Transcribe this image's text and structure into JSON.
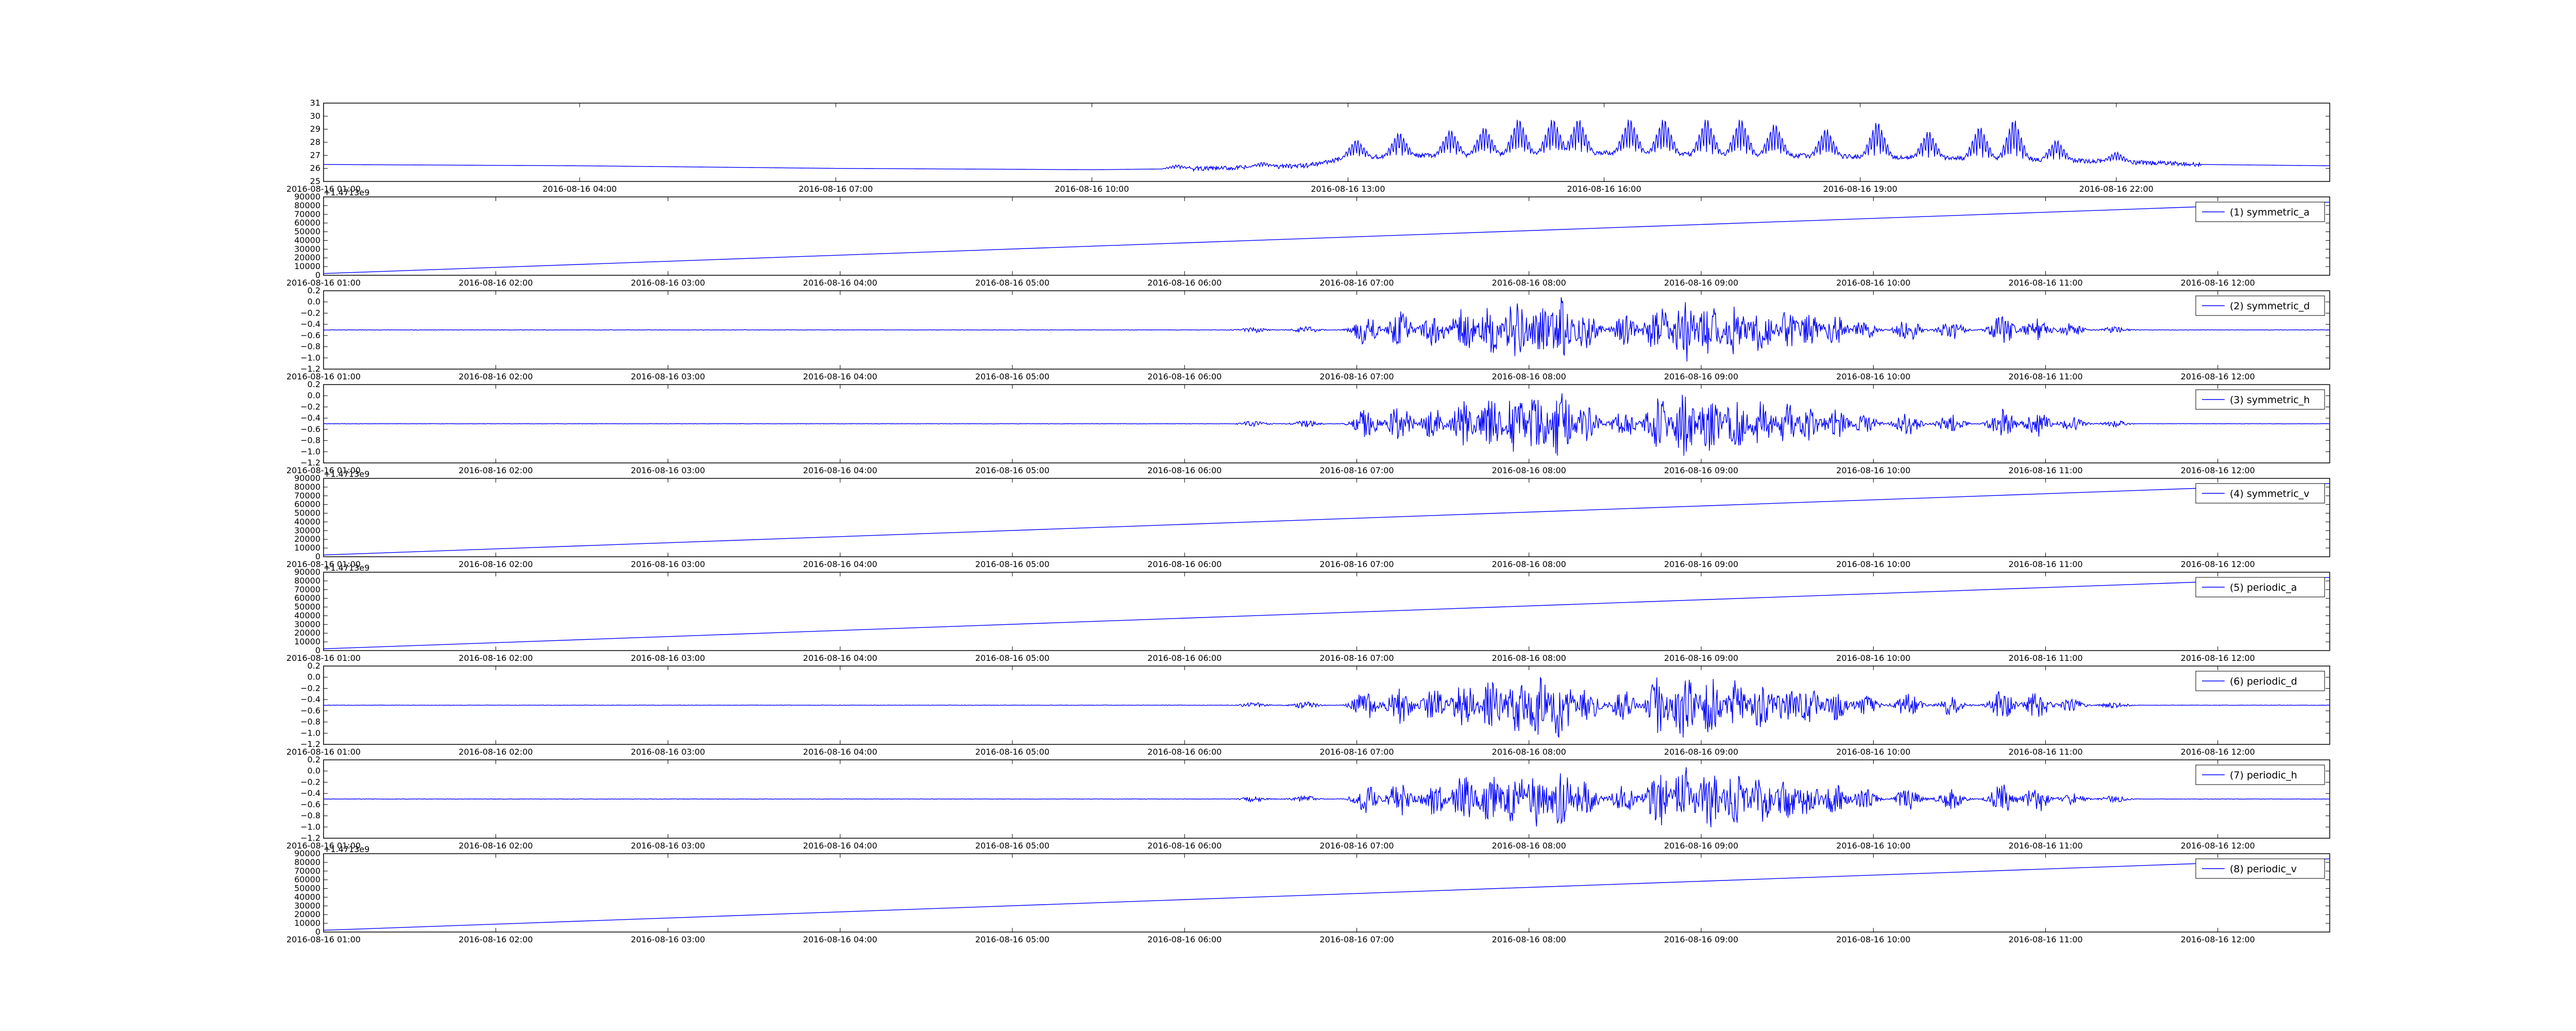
{
  "chart_data": [
    {
      "type": "line",
      "title": "",
      "xlabel": "",
      "ylabel": "",
      "x_ticks": [
        "2016-08-16 01:00",
        "2016-08-16 04:00",
        "2016-08-16 07:00",
        "2016-08-16 10:00",
        "2016-08-16 13:00",
        "2016-08-16 16:00",
        "2016-08-16 19:00",
        "2016-08-16 22:00"
      ],
      "xlim_hours": [
        1,
        24.5
      ],
      "y_ticks": [
        "25",
        "26",
        "27",
        "28",
        "29",
        "30",
        "31"
      ],
      "ylim": [
        25,
        31
      ],
      "grid": false,
      "legend": "",
      "series": [
        {
          "color": "#0000ff",
          "style": "temperature",
          "points": [
            [
              1,
              26.3
            ],
            [
              4,
              26.2
            ],
            [
              7,
              26.0
            ],
            [
              10,
              25.9
            ],
            [
              11.5,
              26.0
            ],
            [
              12.5,
              26.2
            ],
            [
              13,
              26.8
            ],
            [
              14,
              27.0
            ],
            [
              15,
              27.1
            ],
            [
              16,
              27.2
            ],
            [
              17,
              27.1
            ],
            [
              18,
              27.0
            ],
            [
              19,
              26.9
            ],
            [
              20,
              26.8
            ],
            [
              21,
              26.7
            ],
            [
              22,
              26.5
            ],
            [
              23,
              26.3
            ],
            [
              24.5,
              26.2
            ]
          ],
          "spikes": [
            [
              11,
              26.3
            ],
            [
              12,
              26.5
            ],
            [
              13.1,
              28.3
            ],
            [
              13.6,
              28.9
            ],
            [
              14.2,
              29.1
            ],
            [
              14.6,
              29.3
            ],
            [
              15.0,
              30.0
            ],
            [
              15.4,
              30.0
            ],
            [
              15.7,
              30.0
            ],
            [
              16.3,
              30.0
            ],
            [
              16.7,
              30.0
            ],
            [
              17.2,
              30.0
            ],
            [
              17.6,
              30.0
            ],
            [
              18.0,
              29.6
            ],
            [
              18.6,
              29.2
            ],
            [
              19.2,
              29.8
            ],
            [
              19.8,
              29.0
            ],
            [
              20.4,
              29.4
            ],
            [
              20.8,
              30.0
            ],
            [
              21.3,
              28.3
            ],
            [
              22.0,
              27.3
            ]
          ]
        }
      ]
    },
    {
      "type": "line",
      "title": "",
      "xlabel": "",
      "ylabel": "",
      "offset_text": "+1.4713e9",
      "x_ticks": [
        "2016-08-16 01:00",
        "2016-08-16 02:00",
        "2016-08-16 03:00",
        "2016-08-16 04:00",
        "2016-08-16 05:00",
        "2016-08-16 06:00",
        "2016-08-16 07:00",
        "2016-08-16 08:00",
        "2016-08-16 09:00",
        "2016-08-16 10:00",
        "2016-08-16 11:00",
        "2016-08-16 12:00"
      ],
      "xlim_hours": [
        1,
        12.65
      ],
      "y_ticks": [
        "0",
        "10000",
        "20000",
        "30000",
        "40000",
        "50000",
        "60000",
        "70000",
        "80000",
        "90000"
      ],
      "ylim": [
        0,
        90000
      ],
      "grid": false,
      "legend": "top-right",
      "series": [
        {
          "name": "(1) symmetric_a",
          "color": "#0000ff",
          "style": "ramp",
          "points": [
            [
              1,
              2000
            ],
            [
              12.65,
              84000
            ]
          ]
        }
      ]
    },
    {
      "type": "line",
      "title": "",
      "xlabel": "",
      "ylabel": "",
      "x_ticks": [
        "2016-08-16 01:00",
        "2016-08-16 02:00",
        "2016-08-16 03:00",
        "2016-08-16 04:00",
        "2016-08-16 05:00",
        "2016-08-16 06:00",
        "2016-08-16 07:00",
        "2016-08-16 08:00",
        "2016-08-16 09:00",
        "2016-08-16 10:00",
        "2016-08-16 11:00",
        "2016-08-16 12:00"
      ],
      "xlim_hours": [
        1,
        12.65
      ],
      "y_ticks": [
        "−1.2",
        "−1.0",
        "−0.8",
        "−0.6",
        "−0.4",
        "−0.2",
        "0.0",
        "0.2"
      ],
      "ylim": [
        -1.2,
        0.2
      ],
      "grid": false,
      "legend": "top-right",
      "series": [
        {
          "name": "(2) symmetric_d",
          "color": "#0000ff",
          "style": "burst",
          "baseline": -0.5,
          "amplitude": 0.6
        }
      ]
    },
    {
      "type": "line",
      "title": "",
      "xlabel": "",
      "ylabel": "",
      "x_ticks": [
        "2016-08-16 01:00",
        "2016-08-16 02:00",
        "2016-08-16 03:00",
        "2016-08-16 04:00",
        "2016-08-16 05:00",
        "2016-08-16 06:00",
        "2016-08-16 07:00",
        "2016-08-16 08:00",
        "2016-08-16 09:00",
        "2016-08-16 10:00",
        "2016-08-16 11:00",
        "2016-08-16 12:00"
      ],
      "xlim_hours": [
        1,
        12.65
      ],
      "y_ticks": [
        "−1.2",
        "−1.0",
        "−0.8",
        "−0.6",
        "−0.4",
        "−0.2",
        "0.0",
        "0.2"
      ],
      "ylim": [
        -1.2,
        0.2
      ],
      "grid": false,
      "legend": "top-right",
      "series": [
        {
          "name": "(3) symmetric_h",
          "color": "#0000ff",
          "style": "burst",
          "baseline": -0.5,
          "amplitude": 0.6
        }
      ]
    },
    {
      "type": "line",
      "title": "",
      "xlabel": "",
      "ylabel": "",
      "offset_text": "+1.4713e9",
      "x_ticks": [
        "2016-08-16 01:00",
        "2016-08-16 02:00",
        "2016-08-16 03:00",
        "2016-08-16 04:00",
        "2016-08-16 05:00",
        "2016-08-16 06:00",
        "2016-08-16 07:00",
        "2016-08-16 08:00",
        "2016-08-16 09:00",
        "2016-08-16 10:00",
        "2016-08-16 11:00",
        "2016-08-16 12:00"
      ],
      "xlim_hours": [
        1,
        12.65
      ],
      "y_ticks": [
        "0",
        "10000",
        "20000",
        "30000",
        "40000",
        "50000",
        "60000",
        "70000",
        "80000",
        "90000"
      ],
      "ylim": [
        0,
        90000
      ],
      "grid": false,
      "legend": "top-right",
      "series": [
        {
          "name": "(4) symmetric_v",
          "color": "#0000ff",
          "style": "ramp",
          "points": [
            [
              1,
              2000
            ],
            [
              12.65,
              84000
            ]
          ]
        }
      ]
    },
    {
      "type": "line",
      "title": "",
      "xlabel": "",
      "ylabel": "",
      "offset_text": "+1.4713e9",
      "x_ticks": [
        "2016-08-16 01:00",
        "2016-08-16 02:00",
        "2016-08-16 03:00",
        "2016-08-16 04:00",
        "2016-08-16 05:00",
        "2016-08-16 06:00",
        "2016-08-16 07:00",
        "2016-08-16 08:00",
        "2016-08-16 09:00",
        "2016-08-16 10:00",
        "2016-08-16 11:00",
        "2016-08-16 12:00"
      ],
      "xlim_hours": [
        1,
        12.65
      ],
      "y_ticks": [
        "0",
        "10000",
        "20000",
        "30000",
        "40000",
        "50000",
        "60000",
        "70000",
        "80000",
        "90000"
      ],
      "ylim": [
        0,
        90000
      ],
      "grid": false,
      "legend": "top-right",
      "series": [
        {
          "name": "(5) periodic_a",
          "color": "#0000ff",
          "style": "ramp",
          "points": [
            [
              1,
              2000
            ],
            [
              12.65,
              84000
            ]
          ]
        }
      ]
    },
    {
      "type": "line",
      "title": "",
      "xlabel": "",
      "ylabel": "",
      "x_ticks": [
        "2016-08-16 01:00",
        "2016-08-16 02:00",
        "2016-08-16 03:00",
        "2016-08-16 04:00",
        "2016-08-16 05:00",
        "2016-08-16 06:00",
        "2016-08-16 07:00",
        "2016-08-16 08:00",
        "2016-08-16 09:00",
        "2016-08-16 10:00",
        "2016-08-16 11:00",
        "2016-08-16 12:00"
      ],
      "xlim_hours": [
        1,
        12.65
      ],
      "y_ticks": [
        "−1.2",
        "−1.0",
        "−0.8",
        "−0.6",
        "−0.4",
        "−0.2",
        "0.0",
        "0.2"
      ],
      "ylim": [
        -1.2,
        0.2
      ],
      "grid": false,
      "legend": "top-right",
      "series": [
        {
          "name": "(6) periodic_d",
          "color": "#0000ff",
          "style": "burst",
          "baseline": -0.5,
          "amplitude": 0.6
        }
      ]
    },
    {
      "type": "line",
      "title": "",
      "xlabel": "",
      "ylabel": "",
      "x_ticks": [
        "2016-08-16 01:00",
        "2016-08-16 02:00",
        "2016-08-16 03:00",
        "2016-08-16 04:00",
        "2016-08-16 05:00",
        "2016-08-16 06:00",
        "2016-08-16 07:00",
        "2016-08-16 08:00",
        "2016-08-16 09:00",
        "2016-08-16 10:00",
        "2016-08-16 11:00",
        "2016-08-16 12:00"
      ],
      "xlim_hours": [
        1,
        12.65
      ],
      "y_ticks": [
        "−1.2",
        "−1.0",
        "−0.8",
        "−0.6",
        "−0.4",
        "−0.2",
        "0.0",
        "0.2"
      ],
      "ylim": [
        -1.2,
        0.2
      ],
      "grid": false,
      "legend": "top-right",
      "series": [
        {
          "name": "(7) periodic_h",
          "color": "#0000ff",
          "style": "burst",
          "baseline": -0.5,
          "amplitude": 0.6
        }
      ]
    },
    {
      "type": "line",
      "title": "",
      "xlabel": "",
      "ylabel": "",
      "offset_text": "+1.4713e9",
      "x_ticks": [
        "2016-08-16 01:00",
        "2016-08-16 02:00",
        "2016-08-16 03:00",
        "2016-08-16 04:00",
        "2016-08-16 05:00",
        "2016-08-16 06:00",
        "2016-08-16 07:00",
        "2016-08-16 08:00",
        "2016-08-16 09:00",
        "2016-08-16 10:00",
        "2016-08-16 11:00",
        "2016-08-16 12:00"
      ],
      "xlim_hours": [
        1,
        12.65
      ],
      "y_ticks": [
        "0",
        "10000",
        "20000",
        "30000",
        "40000",
        "50000",
        "60000",
        "70000",
        "80000",
        "90000"
      ],
      "ylim": [
        0,
        90000
      ],
      "grid": false,
      "legend": "top-right",
      "series": [
        {
          "name": "(8) periodic_v",
          "color": "#0000ff",
          "style": "ramp",
          "points": [
            [
              1,
              2000
            ],
            [
              12.65,
              84000
            ]
          ]
        }
      ]
    }
  ]
}
